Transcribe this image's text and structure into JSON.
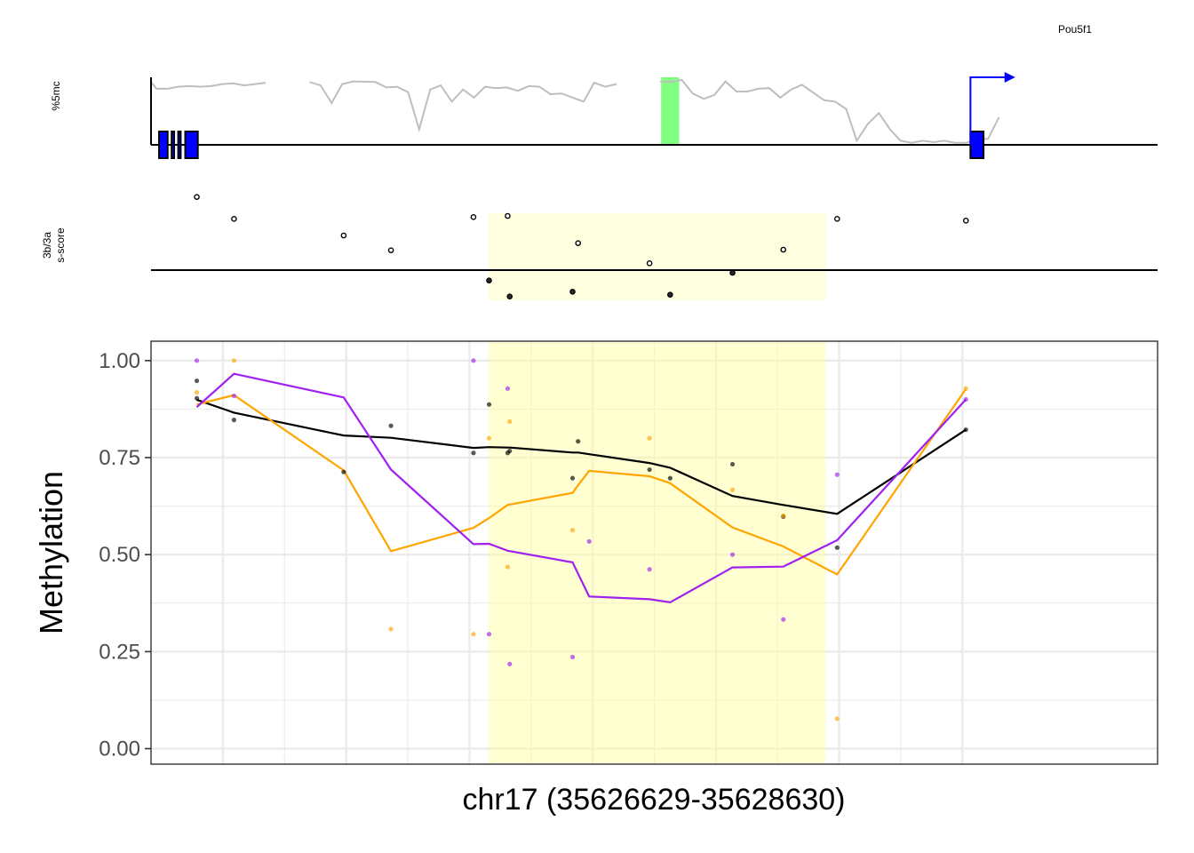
{
  "colors": {
    "wt": "#000000",
    "dnmt3a": "#FFA500",
    "dnmt3b": "#A020F0",
    "highlight": "#FFFFCC",
    "trace_5mc": "#BEBEBE",
    "marker_green": "#80FF80",
    "gene_blue": "#0000FF",
    "grid": "#EBEBEB",
    "panel_border": "#333333"
  },
  "gene_track": {
    "ylabel": "%5mc",
    "gene_label": "Pou5f1",
    "trace_5mc": [
      [
        35626629,
        0.93
      ],
      [
        35626640,
        0.83
      ],
      [
        35626662,
        0.83
      ],
      [
        35626683,
        0.86
      ],
      [
        35626705,
        0.87
      ],
      [
        35626727,
        0.86
      ],
      [
        35626749,
        0.87
      ],
      [
        35626771,
        0.9
      ],
      [
        35626792,
        0.91
      ],
      [
        35626814,
        0.88
      ],
      [
        35626836,
        0.9
      ],
      [
        35626857,
        0.92
      ],
      [
        35626944,
        0.93
      ],
      [
        35626966,
        0.88
      ],
      [
        35626988,
        0.62
      ],
      [
        35627009,
        0.9
      ],
      [
        35627031,
        0.94
      ],
      [
        35627075,
        0.93
      ],
      [
        35627097,
        0.85
      ],
      [
        35627118,
        0.86
      ],
      [
        35627140,
        0.78
      ],
      [
        35627162,
        0.23
      ],
      [
        35627184,
        0.82
      ],
      [
        35627205,
        0.88
      ],
      [
        35627227,
        0.64
      ],
      [
        35627249,
        0.82
      ],
      [
        35627271,
        0.7
      ],
      [
        35627293,
        0.86
      ],
      [
        35627314,
        0.84
      ],
      [
        35627336,
        0.85
      ],
      [
        35627358,
        0.8
      ],
      [
        35627380,
        0.87
      ],
      [
        35627401,
        0.86
      ],
      [
        35627423,
        0.75
      ],
      [
        35627445,
        0.76
      ],
      [
        35627467,
        0.7
      ],
      [
        35627489,
        0.64
      ],
      [
        35627510,
        0.92
      ],
      [
        35627532,
        0.86
      ],
      [
        35627554,
        0.9
      ],
      [
        35627641,
        0.94
      ],
      [
        35627662,
        0.93
      ],
      [
        35627684,
        0.96
      ],
      [
        35627706,
        0.76
      ],
      [
        35627728,
        0.68
      ],
      [
        35627749,
        0.74
      ],
      [
        35627771,
        0.94
      ],
      [
        35627793,
        0.79
      ],
      [
        35627815,
        0.79
      ],
      [
        35627836,
        0.83
      ],
      [
        35627858,
        0.84
      ],
      [
        35627880,
        0.7
      ],
      [
        35627902,
        0.82
      ],
      [
        35627923,
        0.89
      ],
      [
        35627967,
        0.66
      ],
      [
        35627989,
        0.64
      ],
      [
        35628011,
        0.53
      ],
      [
        35628032,
        0.06
      ],
      [
        35628054,
        0.31
      ],
      [
        35628076,
        0.47
      ],
      [
        35628098,
        0.23
      ],
      [
        35628119,
        0.06
      ],
      [
        35628141,
        0.03
      ],
      [
        35628163,
        0.06
      ],
      [
        35628185,
        0.04
      ],
      [
        35628206,
        0.06
      ],
      [
        35628228,
        0.03
      ],
      [
        35628250,
        0.03
      ],
      [
        35628272,
        0.08
      ],
      [
        35628293,
        0.09
      ],
      [
        35628315,
        0.41
      ]
    ],
    "trace_5mc_segments": [
      [
        0,
        11
      ],
      [
        12,
        39
      ],
      [
        40,
        70
      ]
    ],
    "green_region": [
      35627643,
      35627679
    ],
    "exons": [
      [
        35626645,
        35626662
      ],
      [
        35626670,
        35626675
      ],
      [
        35626683,
        35626688
      ],
      [
        35626697,
        35626722
      ],
      [
        35628258,
        35628284
      ]
    ],
    "tss": 35628258,
    "tss_arrow_end": 35628347
  },
  "score_track": {
    "ylabel_line1": "3b/3a",
    "ylabel_line2": "s-score",
    "points": [
      [
        35626720,
        1.25
      ],
      [
        35626794,
        0.88
      ],
      [
        35627012,
        0.6
      ],
      [
        35627106,
        0.35
      ],
      [
        35627270,
        0.91
      ],
      [
        35627301,
        -0.16
      ],
      [
        35627338,
        0.93
      ],
      [
        35627342,
        -0.43
      ],
      [
        35627467,
        -0.35
      ],
      [
        35627478,
        0.47
      ],
      [
        35627620,
        0.13
      ],
      [
        35627661,
        -0.4
      ],
      [
        35627785,
        -0.03
      ],
      [
        35627886,
        0.36
      ],
      [
        35627993,
        0.88
      ],
      [
        35628249,
        0.85
      ]
    ],
    "ylim": [
      -0.6,
      1.5
    ]
  },
  "chart_data": {
    "type": "scatter",
    "title": "",
    "xlabel": "chr17 (35626629-35628630)",
    "ylabel": "Methylation",
    "xlim": [
      35626629,
      35628630
    ],
    "ylim": [
      -0.04,
      1.05
    ],
    "yticks": [
      0,
      0.25,
      0.5,
      0.75,
      1.0
    ],
    "ytick_labels": [
      "0.00",
      "0.25",
      "0.50",
      "0.75",
      "1.00"
    ],
    "x_major_gridlines": [
      35626772,
      35627017,
      35627262,
      35627507,
      35627752,
      35627997,
      35628242
    ],
    "highlight_region": [
      35627300,
      35627970
    ],
    "grid": true,
    "legend": "none",
    "series": [
      {
        "color": "#000000",
        "points": [
          [
            35626720,
            0.948
          ],
          [
            35626720,
            0.903
          ],
          [
            35626794,
            0.847
          ],
          [
            35627012,
            0.713
          ],
          [
            35627106,
            0.832
          ],
          [
            35627270,
            0.762
          ],
          [
            35627301,
            0.887
          ],
          [
            35627338,
            0.762
          ],
          [
            35627342,
            0.767
          ],
          [
            35627467,
            0.697
          ],
          [
            35627478,
            0.792
          ],
          [
            35627620,
            0.719
          ],
          [
            35627661,
            0.697
          ],
          [
            35627785,
            0.733
          ],
          [
            35627886,
            0.598
          ],
          [
            35627993,
            0.518
          ],
          [
            35628249,
            0.822
          ]
        ],
        "line": [
          [
            35626720,
            0.899
          ],
          [
            35626794,
            0.866
          ],
          [
            35627012,
            0.807
          ],
          [
            35627106,
            0.801
          ],
          [
            35627270,
            0.775
          ],
          [
            35627301,
            0.777
          ],
          [
            35627338,
            0.776
          ],
          [
            35627342,
            0.776
          ],
          [
            35627467,
            0.763
          ],
          [
            35627478,
            0.763
          ],
          [
            35627620,
            0.736
          ],
          [
            35627661,
            0.724
          ],
          [
            35627785,
            0.651
          ],
          [
            35627886,
            0.628
          ],
          [
            35627993,
            0.605
          ],
          [
            35628249,
            0.822
          ]
        ]
      },
      {
        "color": "#FFA500",
        "points": [
          [
            35626720,
            0.918
          ],
          [
            35626794,
            1.0
          ],
          [
            35627106,
            0.308
          ],
          [
            35627270,
            0.295
          ],
          [
            35627301,
            0.8
          ],
          [
            35627338,
            0.468
          ],
          [
            35627342,
            0.843
          ],
          [
            35627467,
            0.563
          ],
          [
            35627620,
            0.8
          ],
          [
            35627785,
            0.667
          ],
          [
            35627886,
            0.6
          ],
          [
            35627993,
            0.077
          ],
          [
            35628249,
            0.928
          ]
        ],
        "line": [
          [
            35626720,
            0.887
          ],
          [
            35626794,
            0.911
          ],
          [
            35627012,
            0.717
          ],
          [
            35627106,
            0.509
          ],
          [
            35627270,
            0.569
          ],
          [
            35627301,
            0.594
          ],
          [
            35627338,
            0.628
          ],
          [
            35627467,
            0.659
          ],
          [
            35627478,
            0.679
          ],
          [
            35627500,
            0.716
          ],
          [
            35627620,
            0.702
          ],
          [
            35627661,
            0.684
          ],
          [
            35627785,
            0.57
          ],
          [
            35627886,
            0.521
          ],
          [
            35627993,
            0.449
          ],
          [
            35628249,
            0.927
          ]
        ]
      },
      {
        "color": "#A020F0",
        "points": [
          [
            35626720,
            1.0
          ],
          [
            35626794,
            0.909
          ],
          [
            35627270,
            1.0
          ],
          [
            35627301,
            0.295
          ],
          [
            35627338,
            0.928
          ],
          [
            35627342,
            0.218
          ],
          [
            35627467,
            0.236
          ],
          [
            35627500,
            0.534
          ],
          [
            35627620,
            0.462
          ],
          [
            35627785,
            0.5
          ],
          [
            35627886,
            0.333
          ],
          [
            35627993,
            0.706
          ],
          [
            35628249,
            0.9
          ]
        ],
        "line": [
          [
            35626720,
            0.88
          ],
          [
            35626794,
            0.966
          ],
          [
            35627012,
            0.905
          ],
          [
            35627106,
            0.719
          ],
          [
            35627270,
            0.527
          ],
          [
            35627301,
            0.528
          ],
          [
            35627338,
            0.51
          ],
          [
            35627467,
            0.48
          ],
          [
            35627500,
            0.392
          ],
          [
            35627620,
            0.385
          ],
          [
            35627661,
            0.377
          ],
          [
            35627785,
            0.467
          ],
          [
            35627886,
            0.469
          ],
          [
            35627993,
            0.537
          ],
          [
            35628249,
            0.9
          ]
        ]
      }
    ]
  }
}
